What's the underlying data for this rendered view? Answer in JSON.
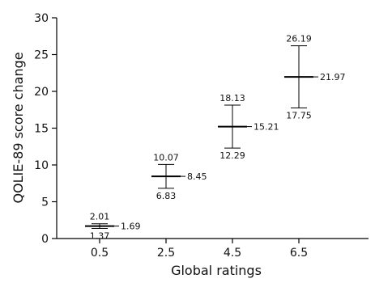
{
  "chart_data": {
    "type": "scatter",
    "xlabel": "Global ratings",
    "ylabel": "QOLIE-89 score change",
    "ylim": [
      0,
      30
    ],
    "y_ticks": [
      0,
      5,
      10,
      15,
      20,
      25,
      30
    ],
    "categories": [
      "0.5",
      "2.5",
      "4.5",
      "6.5"
    ],
    "points": [
      {
        "x": "0.5",
        "mean": 1.69,
        "upper": 2.01,
        "lower": 1.37,
        "mean_label": "1.69",
        "upper_label": "2.01",
        "lower_label": "1.37"
      },
      {
        "x": "2.5",
        "mean": 8.45,
        "upper": 10.07,
        "lower": 6.83,
        "mean_label": "8.45",
        "upper_label": "10.07",
        "lower_label": "6.83"
      },
      {
        "x": "4.5",
        "mean": 15.21,
        "upper": 18.13,
        "lower": 12.29,
        "mean_label": "15.21",
        "upper_label": "18.13",
        "lower_label": "12.29"
      },
      {
        "x": "6.5",
        "mean": 21.97,
        "upper": 26.19,
        "lower": 17.75,
        "mean_label": "21.97",
        "upper_label": "26.19",
        "lower_label": "17.75"
      }
    ],
    "grid": false,
    "legend": "none"
  }
}
